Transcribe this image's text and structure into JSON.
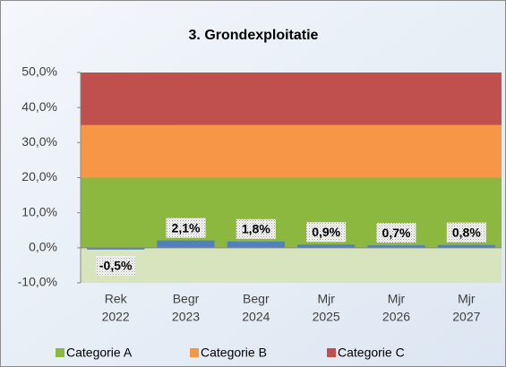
{
  "chart_data": {
    "type": "bar",
    "title": "3. Grondexploitatie",
    "categories": [
      [
        "Rek",
        "2022"
      ],
      [
        "Begr",
        "2023"
      ],
      [
        "Begr",
        "2024"
      ],
      [
        "Mjr",
        "2025"
      ],
      [
        "Mjr",
        "2026"
      ],
      [
        "Mjr",
        "2027"
      ]
    ],
    "values": [
      -0.5,
      2.1,
      1.8,
      0.9,
      0.7,
      0.8
    ],
    "value_labels": [
      "-0,5%",
      "2,1%",
      "1,8%",
      "0,9%",
      "0,7%",
      "0,8%"
    ],
    "color": "#4f81bd",
    "bands": [
      {
        "name": "Categorie A",
        "color": "#8db83f",
        "from": 0,
        "to": 20
      },
      {
        "name": "Categorie B",
        "color": "#f79646",
        "from": 20,
        "to": 35
      },
      {
        "name": "Categorie C",
        "color": "#c0504d",
        "from": 35,
        "to": 50
      }
    ],
    "ylim": [
      -10,
      50
    ],
    "yticks": [
      {
        "value": -10,
        "label": "-10,0%"
      },
      {
        "value": 0,
        "label": "0,0%"
      },
      {
        "value": 10,
        "label": "10,0%"
      },
      {
        "value": 20,
        "label": "20,0%"
      },
      {
        "value": 30,
        "label": "30,0%"
      },
      {
        "value": 40,
        "label": "40,0%"
      },
      {
        "value": 50,
        "label": "50,0%"
      }
    ]
  }
}
